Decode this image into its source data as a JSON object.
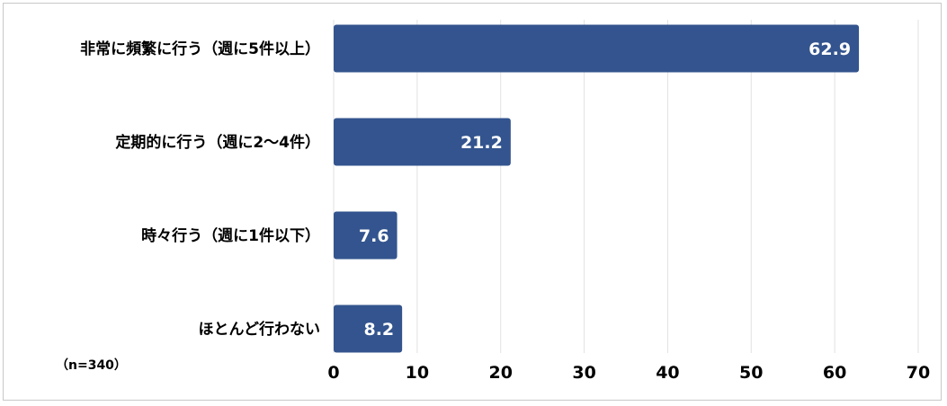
{
  "chart_data": {
    "type": "bar",
    "orientation": "horizontal",
    "categories": [
      "非常に頻繁に行う（週に5件以上）",
      "定期的に行う（週に2〜4件）",
      "時々行う（週に1件以下）",
      "ほとんど行わない"
    ],
    "values": [
      62.9,
      21.2,
      7.6,
      8.2
    ],
    "value_labels": [
      "62.9",
      "21.2",
      "7.6",
      "8.2"
    ],
    "xlim": [
      0,
      70
    ],
    "x_ticks": [
      0,
      10,
      20,
      30,
      40,
      50,
      60,
      70
    ],
    "grid": true,
    "legend": "none",
    "bar_color": "#33548e",
    "grid_color": "#e2e2e2",
    "note": "（n=340）"
  }
}
